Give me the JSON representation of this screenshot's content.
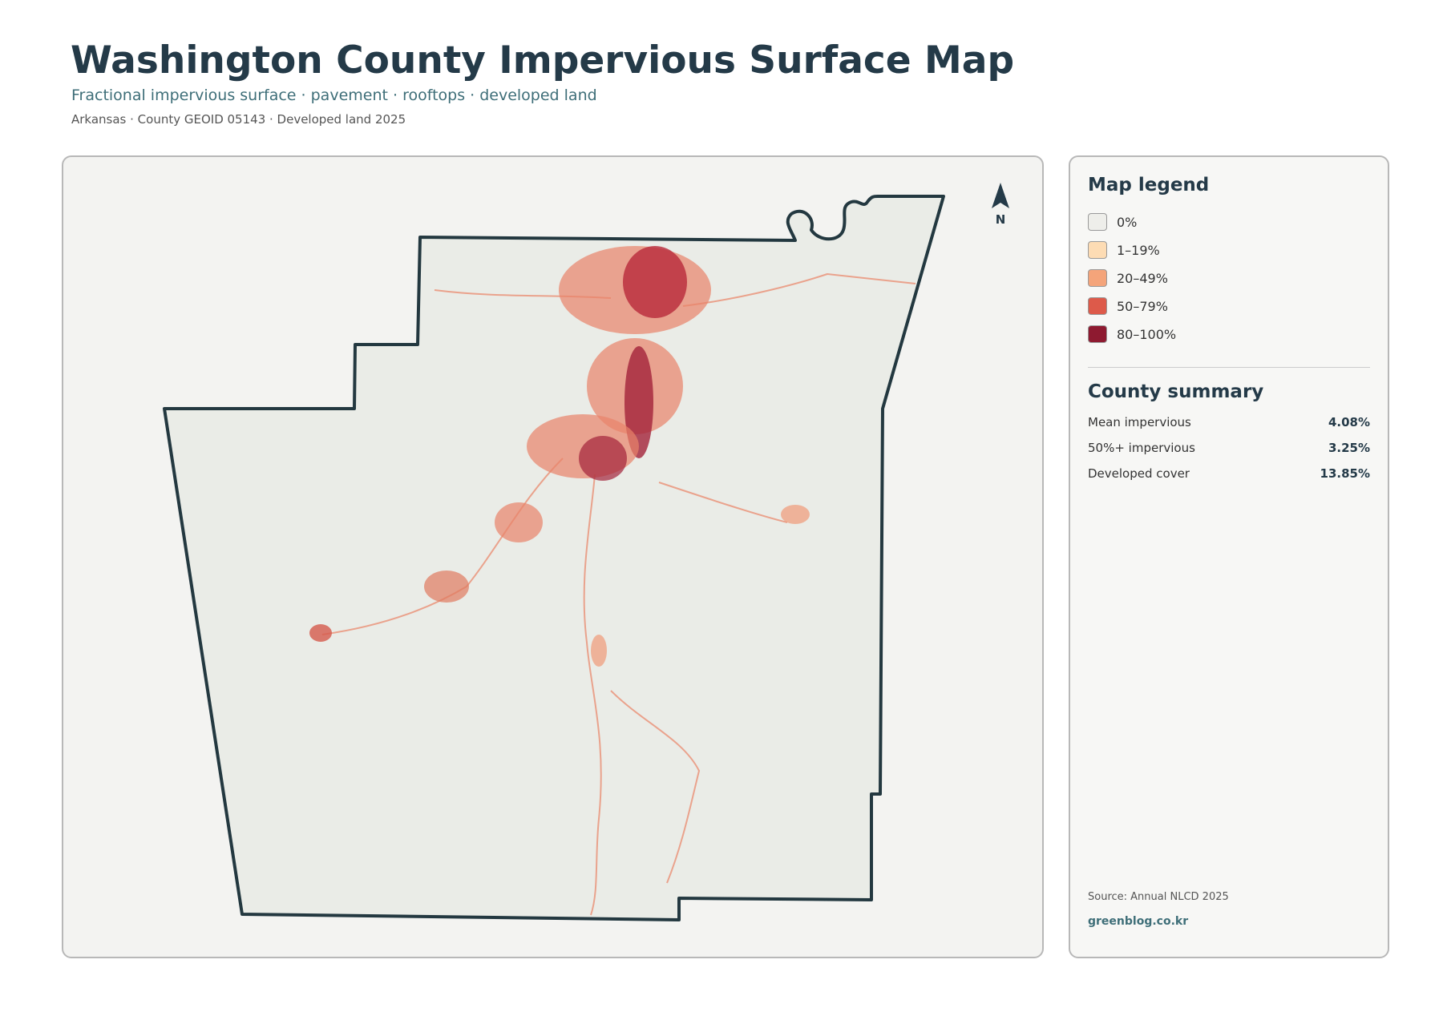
{
  "header": {
    "title": "Washington County Impervious Surface Map",
    "subtitle": "Fractional impervious surface · pavement · rooftops · developed land",
    "meta": "Arkansas · County GEOID 05143 · Developed land 2025"
  },
  "map": {
    "north_label": "N"
  },
  "legend": {
    "title": "Map legend",
    "items": [
      {
        "label": "0%",
        "color": "#eeeeea"
      },
      {
        "label": "1–19%",
        "color": "#fddcb4"
      },
      {
        "label": "20–49%",
        "color": "#f4a47a"
      },
      {
        "label": "50–79%",
        "color": "#dd5a4a"
      },
      {
        "label": "80–100%",
        "color": "#8e1a30"
      }
    ]
  },
  "summary": {
    "title": "County summary",
    "items": [
      {
        "label": "Mean impervious",
        "value": "4.08%"
      },
      {
        "label": "50%+ impervious",
        "value": "3.25%"
      },
      {
        "label": "Developed cover",
        "value": "13.85%"
      }
    ]
  },
  "footer": {
    "source": "Source: Annual NLCD 2025",
    "credit": "greenblog.co.kr"
  }
}
